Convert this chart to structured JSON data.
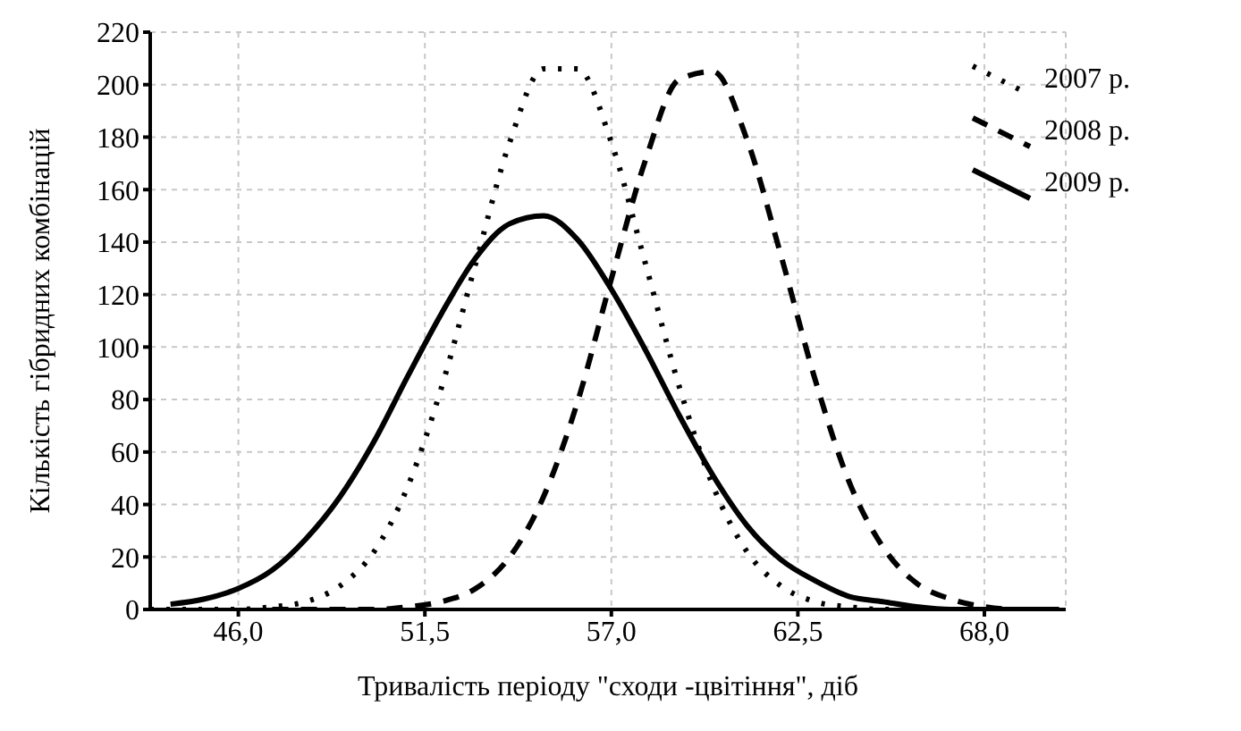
{
  "chart_data": {
    "type": "line",
    "xlabel": "Тривалість періоду \"сходи -цвітіння\", діб",
    "ylabel": "Кількість гібридних комбінацій",
    "series": [
      {
        "name": "2007 р.",
        "color": "#000000",
        "line_style": "dotted",
        "x": [
          43.4,
          45,
          46,
          47,
          48,
          49,
          50,
          51,
          52,
          53,
          54,
          55,
          56,
          57,
          58,
          59,
          60,
          61,
          62,
          63,
          64,
          65,
          66
        ],
        "values": [
          0,
          0,
          0,
          1,
          3,
          9,
          22,
          47,
          85,
          132,
          178,
          206,
          206,
          178,
          132,
          85,
          47,
          22,
          9,
          3,
          1,
          0,
          0
        ]
      },
      {
        "name": "2008 р.",
        "color": "#000000",
        "line_style": "dashed",
        "x": [
          47,
          48,
          49,
          50,
          51,
          52,
          53,
          54,
          55,
          56,
          57,
          58,
          59,
          60,
          61,
          62,
          63,
          64,
          65,
          66,
          67,
          68,
          69,
          70.4
        ],
        "values": [
          0,
          0,
          0,
          0,
          1,
          3,
          8,
          20,
          43,
          79,
          126,
          171,
          202,
          205,
          179,
          135,
          88,
          49,
          24,
          10,
          4,
          1,
          0,
          0
        ]
      },
      {
        "name": "2009 р.",
        "color": "#000000",
        "line_style": "solid",
        "x": [
          44,
          45,
          46,
          47,
          48,
          49,
          50,
          51,
          52,
          53,
          54,
          55,
          56,
          57,
          58,
          59,
          60,
          61,
          62,
          63,
          64,
          65,
          66,
          67,
          68,
          69,
          70
        ],
        "values": [
          2,
          4,
          8,
          15,
          27,
          43,
          64,
          89,
          113,
          134,
          147,
          150,
          141,
          122,
          99,
          74,
          51,
          32,
          19,
          11,
          5,
          3,
          1,
          0,
          0,
          0,
          0
        ]
      }
    ],
    "xlim": [
      43.4,
      70.4
    ],
    "xticks": [
      {
        "value": 46,
        "label": "46,0"
      },
      {
        "value": 51.5,
        "label": "51,5"
      },
      {
        "value": 57,
        "label": "57,0"
      },
      {
        "value": 62.5,
        "label": "62,5"
      },
      {
        "value": 68,
        "label": "68,0"
      }
    ],
    "ylim": [
      0,
      220
    ],
    "yticks": [
      0,
      20,
      40,
      60,
      80,
      100,
      120,
      140,
      160,
      180,
      200,
      220
    ],
    "grid": true,
    "legend": "top right"
  }
}
